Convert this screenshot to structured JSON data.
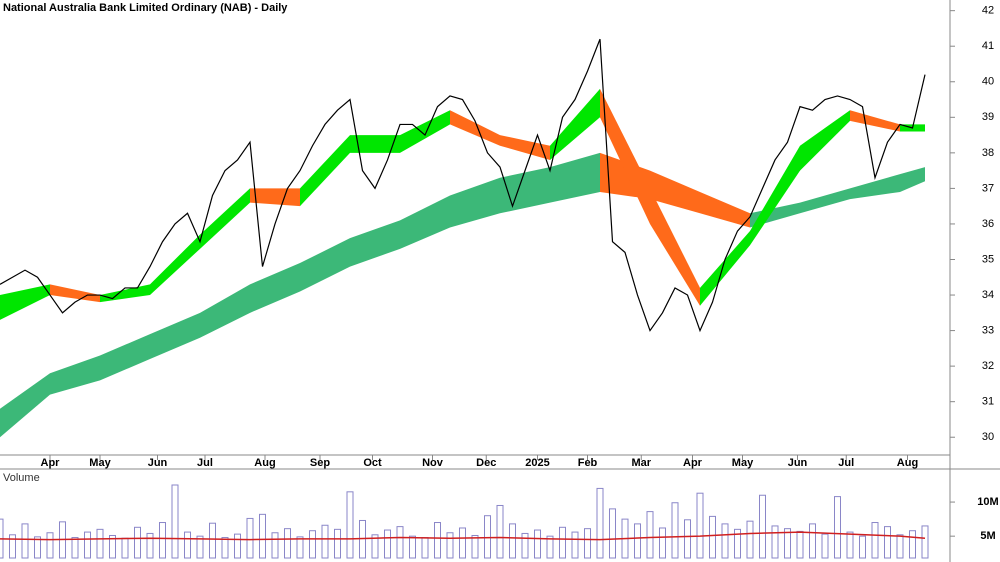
{
  "chart_data": [
    {
      "type": "price",
      "title": "National Australia Bank Limited Ordinary (NAB) - Daily",
      "xlim": [
        0,
        76
      ],
      "xticks": [
        {
          "value": 4,
          "label": "Apr"
        },
        {
          "value": 8,
          "label": "May"
        },
        {
          "value": 12.6,
          "label": "Jun"
        },
        {
          "value": 16.4,
          "label": "Jul"
        },
        {
          "value": 21.2,
          "label": "Aug"
        },
        {
          "value": 25.6,
          "label": "Sep"
        },
        {
          "value": 29.8,
          "label": "Oct"
        },
        {
          "value": 34.6,
          "label": "Nov"
        },
        {
          "value": 38.9,
          "label": "Dec"
        },
        {
          "value": 43,
          "label": "2025"
        },
        {
          "value": 47,
          "label": "Feb"
        },
        {
          "value": 51.3,
          "label": "Mar"
        },
        {
          "value": 55.4,
          "label": "Apr"
        },
        {
          "value": 59.4,
          "label": "May"
        },
        {
          "value": 63.8,
          "label": "Jun"
        },
        {
          "value": 67.7,
          "label": "Jul"
        },
        {
          "value": 72.6,
          "label": "Aug"
        }
      ],
      "ylim": [
        29.5,
        42.3
      ],
      "yticks": [
        30,
        31,
        32,
        33,
        34,
        35,
        36,
        37,
        38,
        39,
        40,
        41,
        42
      ],
      "x": [
        0,
        1,
        2,
        3,
        4,
        5,
        6,
        7,
        8,
        9,
        10,
        11,
        12,
        13,
        14,
        15,
        16,
        17,
        18,
        19,
        20,
        21,
        22,
        23,
        24,
        25,
        26,
        27,
        28,
        29,
        30,
        31,
        32,
        33,
        34,
        35,
        36,
        37,
        38,
        39,
        40,
        41,
        42,
        43,
        44,
        45,
        46,
        47,
        48,
        49,
        50,
        51,
        52,
        53,
        54,
        55,
        56,
        57,
        58,
        59,
        60,
        61,
        62,
        63,
        64,
        65,
        66,
        67,
        68,
        69,
        70,
        71,
        72,
        73,
        74
      ],
      "values": [
        34.3,
        34.5,
        34.7,
        34.5,
        34.0,
        33.5,
        33.8,
        34.0,
        34.0,
        33.9,
        34.2,
        34.2,
        34.8,
        35.5,
        36.0,
        36.3,
        35.5,
        36.8,
        37.5,
        37.8,
        38.3,
        34.8,
        36.0,
        37.0,
        37.5,
        38.2,
        38.8,
        39.2,
        39.5,
        37.5,
        37.0,
        37.8,
        38.8,
        38.8,
        38.5,
        39.3,
        39.6,
        39.5,
        38.9,
        38.0,
        37.6,
        36.5,
        37.5,
        38.5,
        37.5,
        39.0,
        39.5,
        40.3,
        41.2,
        35.5,
        35.2,
        34.0,
        33.0,
        33.5,
        34.2,
        34.0,
        33.0,
        33.8,
        35.0,
        35.8,
        36.2,
        37.0,
        37.8,
        38.3,
        39.3,
        39.2,
        39.5,
        39.6,
        39.5,
        39.3,
        37.3,
        38.3,
        38.8,
        38.7,
        40.2
      ],
      "color": "#000000",
      "bands": [
        {
          "rise_color": "#3cb878",
          "fall_color": "#ff6a1a",
          "x": [
            0,
            4,
            8,
            12,
            16,
            20,
            24,
            28,
            32,
            36,
            40,
            44,
            48,
            52,
            56,
            60,
            64,
            68,
            72,
            74
          ],
          "upper": [
            30.8,
            31.8,
            32.3,
            32.9,
            33.5,
            34.3,
            34.9,
            35.6,
            36.1,
            36.8,
            37.3,
            37.6,
            38.0,
            37.5,
            36.9,
            36.3,
            36.6,
            37.0,
            37.4,
            37.6
          ],
          "lower": [
            30.0,
            31.2,
            31.6,
            32.2,
            32.8,
            33.5,
            34.1,
            34.8,
            35.3,
            35.9,
            36.3,
            36.6,
            36.9,
            36.7,
            36.3,
            35.9,
            36.3,
            36.7,
            36.9,
            37.2
          ]
        },
        {
          "rise_color": "#00e600",
          "fall_color": "#ff6a1a",
          "x": [
            0,
            4,
            8,
            12,
            16,
            20,
            24,
            28,
            32,
            36,
            40,
            44,
            48,
            52,
            56,
            60,
            64,
            68,
            72,
            74
          ],
          "upper": [
            34.0,
            34.3,
            34.0,
            34.3,
            35.7,
            37.0,
            37.0,
            38.5,
            38.5,
            39.2,
            38.5,
            38.2,
            39.8,
            37.0,
            34.2,
            35.8,
            38.2,
            39.2,
            38.8,
            38.8
          ],
          "lower": [
            33.3,
            34.0,
            33.8,
            34.0,
            35.3,
            36.6,
            36.5,
            38.0,
            38.0,
            38.8,
            38.2,
            37.8,
            39.0,
            36.0,
            33.7,
            35.4,
            37.5,
            38.9,
            38.6,
            38.6
          ]
        }
      ]
    },
    {
      "type": "volume",
      "title": "Volume",
      "xlim": [
        0,
        76
      ],
      "ylim": [
        1.8,
        14.7
      ],
      "yticks": [
        {
          "value": 5,
          "label": "5M"
        },
        {
          "value": 10,
          "label": "10M"
        }
      ],
      "x": [
        0,
        1,
        2,
        3,
        4,
        5,
        6,
        7,
        8,
        9,
        10,
        11,
        12,
        13,
        14,
        15,
        16,
        17,
        18,
        19,
        20,
        21,
        22,
        23,
        24,
        25,
        26,
        27,
        28,
        29,
        30,
        31,
        32,
        33,
        34,
        35,
        36,
        37,
        38,
        39,
        40,
        41,
        42,
        43,
        44,
        45,
        46,
        47,
        48,
        49,
        50,
        51,
        52,
        53,
        54,
        55,
        56,
        57,
        58,
        59,
        60,
        61,
        62,
        63,
        64,
        65,
        66,
        67,
        68,
        69,
        70,
        71,
        72,
        73,
        74
      ],
      "values": [
        7.5,
        5.2,
        6.8,
        4.9,
        5.5,
        7.1,
        4.8,
        5.6,
        6.0,
        5.1,
        4.7,
        6.3,
        5.4,
        7.0,
        12.5,
        5.6,
        5.0,
        6.9,
        4.8,
        5.3,
        7.6,
        8.2,
        5.5,
        6.1,
        4.9,
        5.8,
        6.6,
        6.0,
        11.5,
        7.3,
        5.2,
        5.9,
        6.4,
        5.0,
        4.8,
        7.0,
        5.5,
        6.2,
        5.1,
        8.0,
        9.5,
        6.8,
        5.4,
        5.9,
        5.0,
        6.3,
        5.6,
        6.1,
        12.0,
        9.0,
        7.5,
        6.8,
        8.6,
        6.2,
        9.9,
        7.4,
        11.3,
        7.9,
        6.8,
        6.0,
        7.2,
        11.0,
        6.5,
        6.1,
        5.7,
        6.8,
        5.3,
        10.8,
        5.6,
        5.0,
        7.0,
        6.4,
        5.2,
        5.8,
        6.5
      ],
      "color": "#8a86c8",
      "average": {
        "color": "#d02020",
        "x": [
          0,
          4,
          8,
          12,
          16,
          20,
          24,
          28,
          32,
          36,
          40,
          44,
          48,
          52,
          56,
          60,
          64,
          68,
          72,
          74
        ],
        "values": [
          4.6,
          4.5,
          4.6,
          4.7,
          4.6,
          4.5,
          4.6,
          4.6,
          4.8,
          4.7,
          4.8,
          4.6,
          4.5,
          4.8,
          5.0,
          5.4,
          5.6,
          5.3,
          5.0,
          4.7
        ]
      }
    }
  ]
}
